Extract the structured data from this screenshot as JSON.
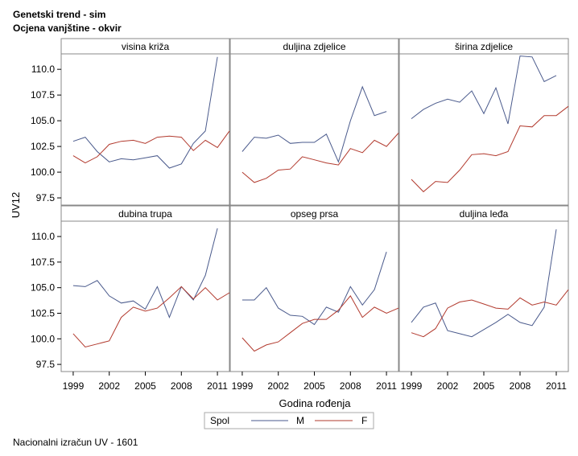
{
  "title_lines": [
    "Genetski trend - sim",
    "Ocjena vanjštine - okvir"
  ],
  "footnote": "Nacionalni izračun UV - 1601",
  "colors": {
    "M": "#4a5a8c",
    "F": "#b23a2e",
    "frame": "#888888",
    "header_bg": "#ffffff"
  },
  "chart_data": {
    "type": "line",
    "layout": "panel-2x3",
    "xlabel": "Godina rođenja",
    "ylabel": "UV12",
    "xlim": [
      1998,
      2012
    ],
    "ylim": [
      96.8,
      111.5
    ],
    "x_ticks": [
      1999,
      2002,
      2005,
      2008,
      2011
    ],
    "y_ticks": [
      97.5,
      100.0,
      102.5,
      105.0,
      107.5,
      110.0
    ],
    "grid": false,
    "legend": {
      "title": "Spol",
      "placement": "bottom-center",
      "entries": [
        "M",
        "F"
      ]
    },
    "x": [
      1999,
      2000,
      2001,
      2002,
      2003,
      2004,
      2005,
      2006,
      2007,
      2008,
      2009,
      2010,
      2011,
      2012
    ],
    "panels": [
      {
        "title": "visina križa",
        "series": [
          {
            "name": "M",
            "values": [
              103.0,
              103.4,
              102.0,
              101.0,
              101.3,
              101.2,
              101.4,
              101.6,
              100.4,
              100.8,
              102.8,
              104.0,
              111.2,
              null
            ]
          },
          {
            "name": "F",
            "values": [
              101.6,
              100.9,
              101.5,
              102.7,
              103.0,
              103.1,
              102.8,
              103.4,
              103.5,
              103.4,
              102.1,
              103.1,
              102.4,
              104.0
            ]
          }
        ]
      },
      {
        "title": "duljina zdjelice",
        "series": [
          {
            "name": "M",
            "values": [
              102.0,
              103.4,
              103.3,
              103.6,
              102.8,
              102.9,
              102.9,
              103.7,
              101.0,
              105.0,
              108.3,
              105.5,
              105.9,
              null
            ]
          },
          {
            "name": "F",
            "values": [
              100.0,
              99.0,
              99.4,
              100.2,
              100.3,
              101.5,
              101.2,
              100.9,
              100.7,
              102.3,
              101.9,
              103.1,
              102.5,
              103.8
            ]
          }
        ]
      },
      {
        "title": "širina zdjelice",
        "series": [
          {
            "name": "M",
            "values": [
              105.2,
              106.1,
              106.7,
              107.1,
              106.8,
              107.9,
              105.7,
              108.2,
              104.7,
              111.3,
              111.2,
              108.8,
              109.4,
              null
            ]
          },
          {
            "name": "F",
            "values": [
              99.3,
              98.1,
              99.1,
              99.0,
              100.2,
              101.7,
              101.8,
              101.6,
              102.0,
              104.5,
              104.4,
              105.5,
              105.5,
              106.4
            ]
          }
        ]
      },
      {
        "title": "dubina trupa",
        "series": [
          {
            "name": "M",
            "values": [
              105.2,
              105.1,
              105.7,
              104.2,
              103.5,
              103.7,
              102.9,
              105.1,
              102.1,
              105.1,
              103.8,
              106.2,
              110.8,
              null
            ]
          },
          {
            "name": "F",
            "values": [
              100.5,
              99.2,
              99.5,
              99.8,
              102.1,
              103.1,
              102.7,
              103.0,
              104.0,
              105.1,
              103.9,
              105.0,
              103.8,
              104.5
            ]
          }
        ]
      },
      {
        "title": "opseg prsa",
        "series": [
          {
            "name": "M",
            "values": [
              103.8,
              103.8,
              105.0,
              103.0,
              102.3,
              102.2,
              101.4,
              103.1,
              102.6,
              105.1,
              103.3,
              104.8,
              108.5,
              null
            ]
          },
          {
            "name": "F",
            "values": [
              100.1,
              98.8,
              99.4,
              99.7,
              100.6,
              101.5,
              101.9,
              101.9,
              102.8,
              104.2,
              102.1,
              103.1,
              102.5,
              103.0
            ]
          }
        ]
      },
      {
        "title": "duljina leđa",
        "series": [
          {
            "name": "M",
            "values": [
              101.6,
              103.1,
              103.5,
              100.8,
              100.5,
              100.2,
              100.9,
              101.6,
              102.4,
              101.6,
              101.3,
              103.1,
              110.7,
              null
            ]
          },
          {
            "name": "F",
            "values": [
              100.6,
              100.2,
              101.0,
              103.0,
              103.6,
              103.8,
              103.4,
              103.0,
              102.9,
              104.0,
              103.3,
              103.6,
              103.3,
              104.8
            ]
          }
        ]
      }
    ]
  }
}
